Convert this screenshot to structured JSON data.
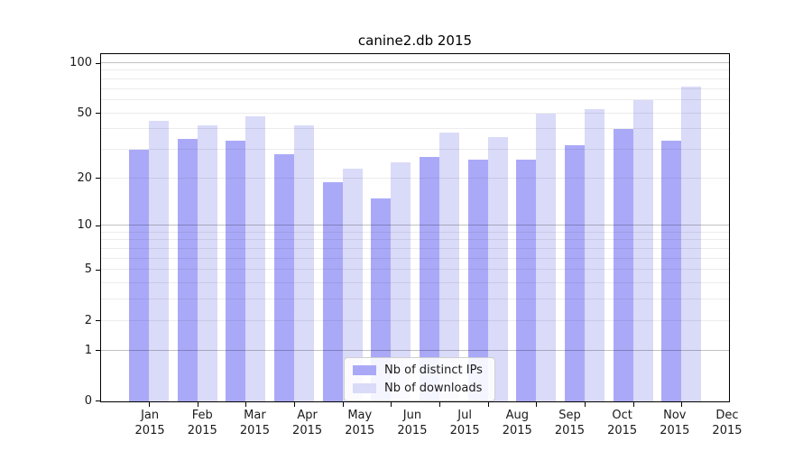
{
  "title": "canine2.db 2015",
  "colors": {
    "bar_distinct_ips": "#aaa9f8",
    "bar_downloads": "#dadaf9",
    "grid_minor": "#00000013",
    "grid_major": "#0000003d",
    "axis": "#000000",
    "text": "#1a1a1a"
  },
  "y_axis": {
    "tick_values": [
      100,
      50,
      20,
      10,
      5,
      2,
      1,
      0
    ],
    "tick_labels": [
      "100",
      "50",
      "20",
      "10",
      "5",
      "2",
      "1",
      "0"
    ],
    "minor_gridlines": [
      2,
      3,
      4,
      5,
      6,
      7,
      8,
      9,
      20,
      30,
      40,
      50,
      60,
      70,
      80,
      90
    ],
    "major_gridlines": [
      1,
      10,
      100
    ]
  },
  "x_axis": {
    "months": [
      "Jan",
      "Feb",
      "Mar",
      "Apr",
      "May",
      "Jun",
      "Jul",
      "Aug",
      "Sep",
      "Oct",
      "Nov",
      "Dec"
    ],
    "year_label": "2015"
  },
  "legend": {
    "items": [
      {
        "label": "Nb of distinct IPs",
        "color": "#aaa9f8"
      },
      {
        "label": "Nb of downloads",
        "color": "#dadaf9"
      }
    ]
  },
  "chart_data": {
    "type": "bar",
    "title": "canine2.db 2015",
    "categories": [
      "Jan 2015",
      "Feb 2015",
      "Mar 2015",
      "Apr 2015",
      "May 2015",
      "Jun 2015",
      "Jul 2015",
      "Aug 2015",
      "Sep 2015",
      "Oct 2015",
      "Nov 2015",
      "Dec 2015"
    ],
    "series": [
      {
        "name": "Nb of distinct IPs",
        "color": "#aaa9f8",
        "values": [
          30,
          35,
          34,
          28,
          19,
          15,
          27,
          26,
          26,
          32,
          40,
          34
        ]
      },
      {
        "name": "Nb of downloads",
        "color": "#dadaf9",
        "values": [
          45,
          42,
          48,
          42,
          23,
          25,
          38,
          36,
          50,
          53,
          60,
          72
        ]
      }
    ],
    "ylabel": "",
    "xlabel": "",
    "yscale": "symlog-ln(1+v)",
    "ylim": [
      0,
      100
    ],
    "y_ticks": [
      0,
      1,
      2,
      5,
      10,
      20,
      50,
      100
    ],
    "grid": "horizontal, drawn over bars, darker at decades 1/10/100",
    "legend_position": "inside lower-center"
  }
}
